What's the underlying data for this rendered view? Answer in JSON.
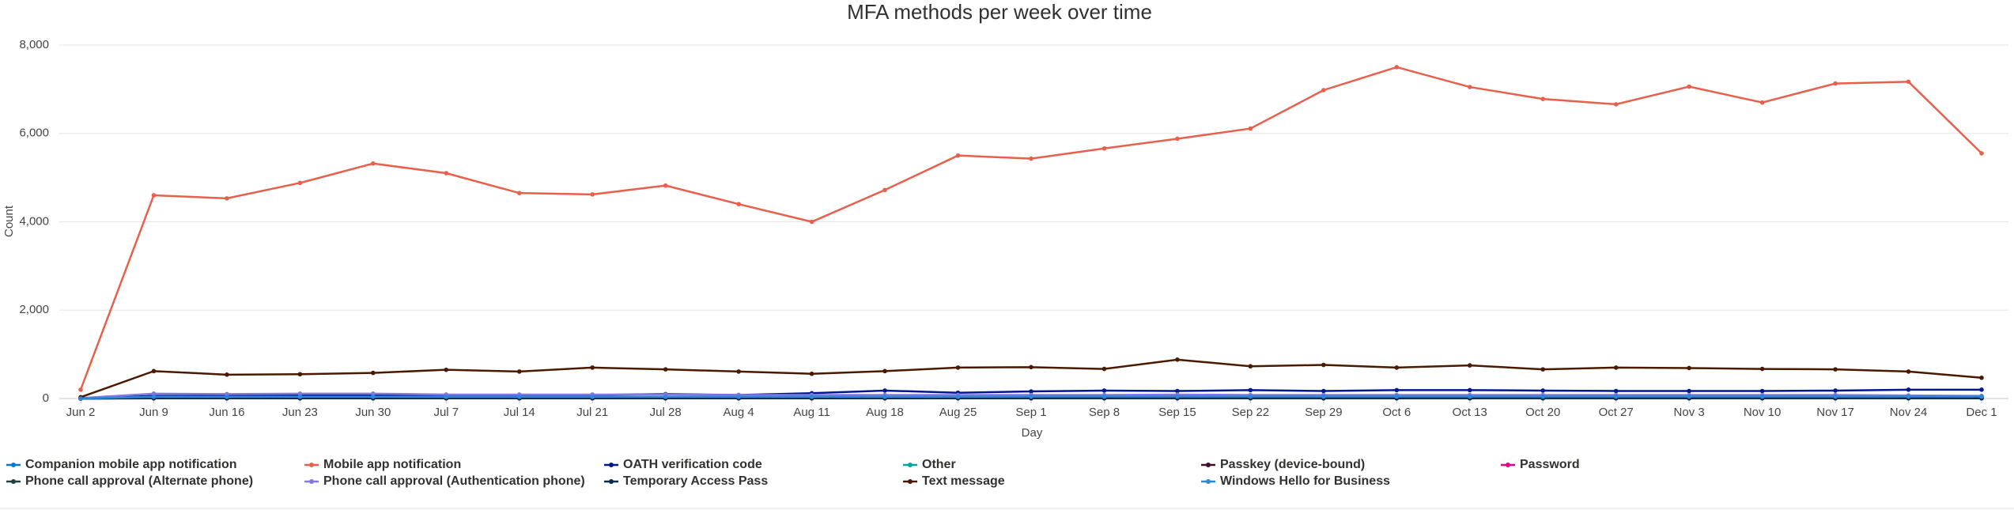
{
  "chart_data": {
    "type": "line",
    "title": "MFA methods per week over time",
    "x_label": "Day",
    "y_label": "Count",
    "categories": [
      "Jun 2",
      "Jun 9",
      "Jun 16",
      "Jun 23",
      "Jun 30",
      "Jul 7",
      "Jul 14",
      "Jul 21",
      "Jul 28",
      "Aug 4",
      "Aug 11",
      "Aug 18",
      "Aug 25",
      "Sep 1",
      "Sep 8",
      "Sep 15",
      "Sep 22",
      "Sep 29",
      "Oct 6",
      "Oct 13",
      "Oct 20",
      "Oct 27",
      "Nov 3",
      "Nov 10",
      "Nov 17",
      "Nov 24",
      "Dec 1"
    ],
    "ylim": [
      0,
      8000
    ],
    "yticks": [
      0,
      {
        "value": 2000,
        "label": "2,000"
      },
      {
        "value": 4000,
        "label": "4,000"
      },
      {
        "value": 6000,
        "label": "6,000"
      },
      {
        "value": 8000,
        "label": "8,000"
      }
    ],
    "grid": true,
    "series": [
      {
        "name": "Companion mobile app notification",
        "color": "#0078d4",
        "values": [
          5,
          30,
          30,
          35,
          35,
          30,
          30,
          30,
          30,
          30,
          30,
          35,
          35,
          35,
          35,
          35,
          35,
          35,
          35,
          35,
          35,
          35,
          35,
          35,
          35,
          35,
          30
        ]
      },
      {
        "name": "Mobile app notification",
        "color": "#e8604c",
        "values": [
          200,
          4600,
          4530,
          4880,
          5320,
          5100,
          4650,
          4620,
          4820,
          4400,
          4000,
          4720,
          5500,
          5430,
          5660,
          5880,
          6110,
          6980,
          7500,
          7050,
          6780,
          6660,
          7060,
          6700,
          7130,
          7170,
          5550
        ]
      },
      {
        "name": "OATH verification code",
        "color": "#00188f",
        "values": [
          0,
          60,
          60,
          70,
          80,
          80,
          70,
          80,
          100,
          80,
          120,
          180,
          130,
          160,
          180,
          170,
          190,
          170,
          190,
          190,
          180,
          170,
          170,
          170,
          180,
          200,
          200
        ]
      },
      {
        "name": "Other",
        "color": "#00a5a5",
        "values": [
          0,
          5,
          5,
          5,
          5,
          5,
          5,
          5,
          5,
          5,
          5,
          5,
          5,
          5,
          5,
          5,
          5,
          5,
          5,
          5,
          5,
          5,
          5,
          5,
          5,
          5,
          5
        ]
      },
      {
        "name": "Passkey (device-bound)",
        "color": "#3b0f2b",
        "values": [
          0,
          10,
          10,
          10,
          10,
          10,
          10,
          10,
          10,
          10,
          10,
          10,
          10,
          15,
          15,
          15,
          15,
          15,
          15,
          15,
          15,
          15,
          15,
          15,
          15,
          15,
          15
        ]
      },
      {
        "name": "Password",
        "color": "#e3008c",
        "values": [
          0,
          5,
          5,
          5,
          5,
          5,
          5,
          5,
          5,
          5,
          5,
          5,
          20,
          30,
          40,
          60,
          40,
          40,
          40,
          40,
          40,
          40,
          40,
          40,
          40,
          40,
          40
        ]
      },
      {
        "name": "Phone call approval (Alternate phone)",
        "color": "#1d3f3f",
        "values": [
          0,
          10,
          10,
          10,
          10,
          10,
          10,
          10,
          10,
          10,
          10,
          10,
          10,
          10,
          10,
          10,
          10,
          10,
          10,
          10,
          10,
          10,
          10,
          10,
          10,
          10,
          10
        ]
      },
      {
        "name": "Phone call approval (Authentication phone)",
        "color": "#8378de",
        "values": [
          10,
          110,
          100,
          110,
          110,
          90,
          90,
          90,
          90,
          80,
          80,
          80,
          80,
          80,
          80,
          90,
          80,
          80,
          80,
          80,
          80,
          80,
          80,
          80,
          80,
          70,
          60
        ]
      },
      {
        "name": "Temporary Access Pass",
        "color": "#0b2a4a",
        "values": [
          0,
          5,
          5,
          5,
          5,
          5,
          5,
          5,
          5,
          5,
          5,
          5,
          5,
          5,
          5,
          5,
          5,
          5,
          5,
          5,
          5,
          5,
          5,
          5,
          5,
          5,
          5
        ]
      },
      {
        "name": "Text message",
        "color": "#4a1a00",
        "values": [
          30,
          620,
          540,
          550,
          580,
          650,
          610,
          700,
          660,
          610,
          560,
          620,
          700,
          710,
          670,
          880,
          730,
          760,
          700,
          750,
          660,
          700,
          690,
          670,
          660,
          610,
          470
        ]
      },
      {
        "name": "Windows Hello for Business",
        "color": "#2b88d8",
        "values": [
          0,
          40,
          40,
          40,
          40,
          40,
          40,
          40,
          40,
          40,
          40,
          40,
          40,
          45,
          45,
          45,
          45,
          45,
          45,
          45,
          45,
          45,
          45,
          45,
          45,
          45,
          45
        ]
      }
    ]
  }
}
